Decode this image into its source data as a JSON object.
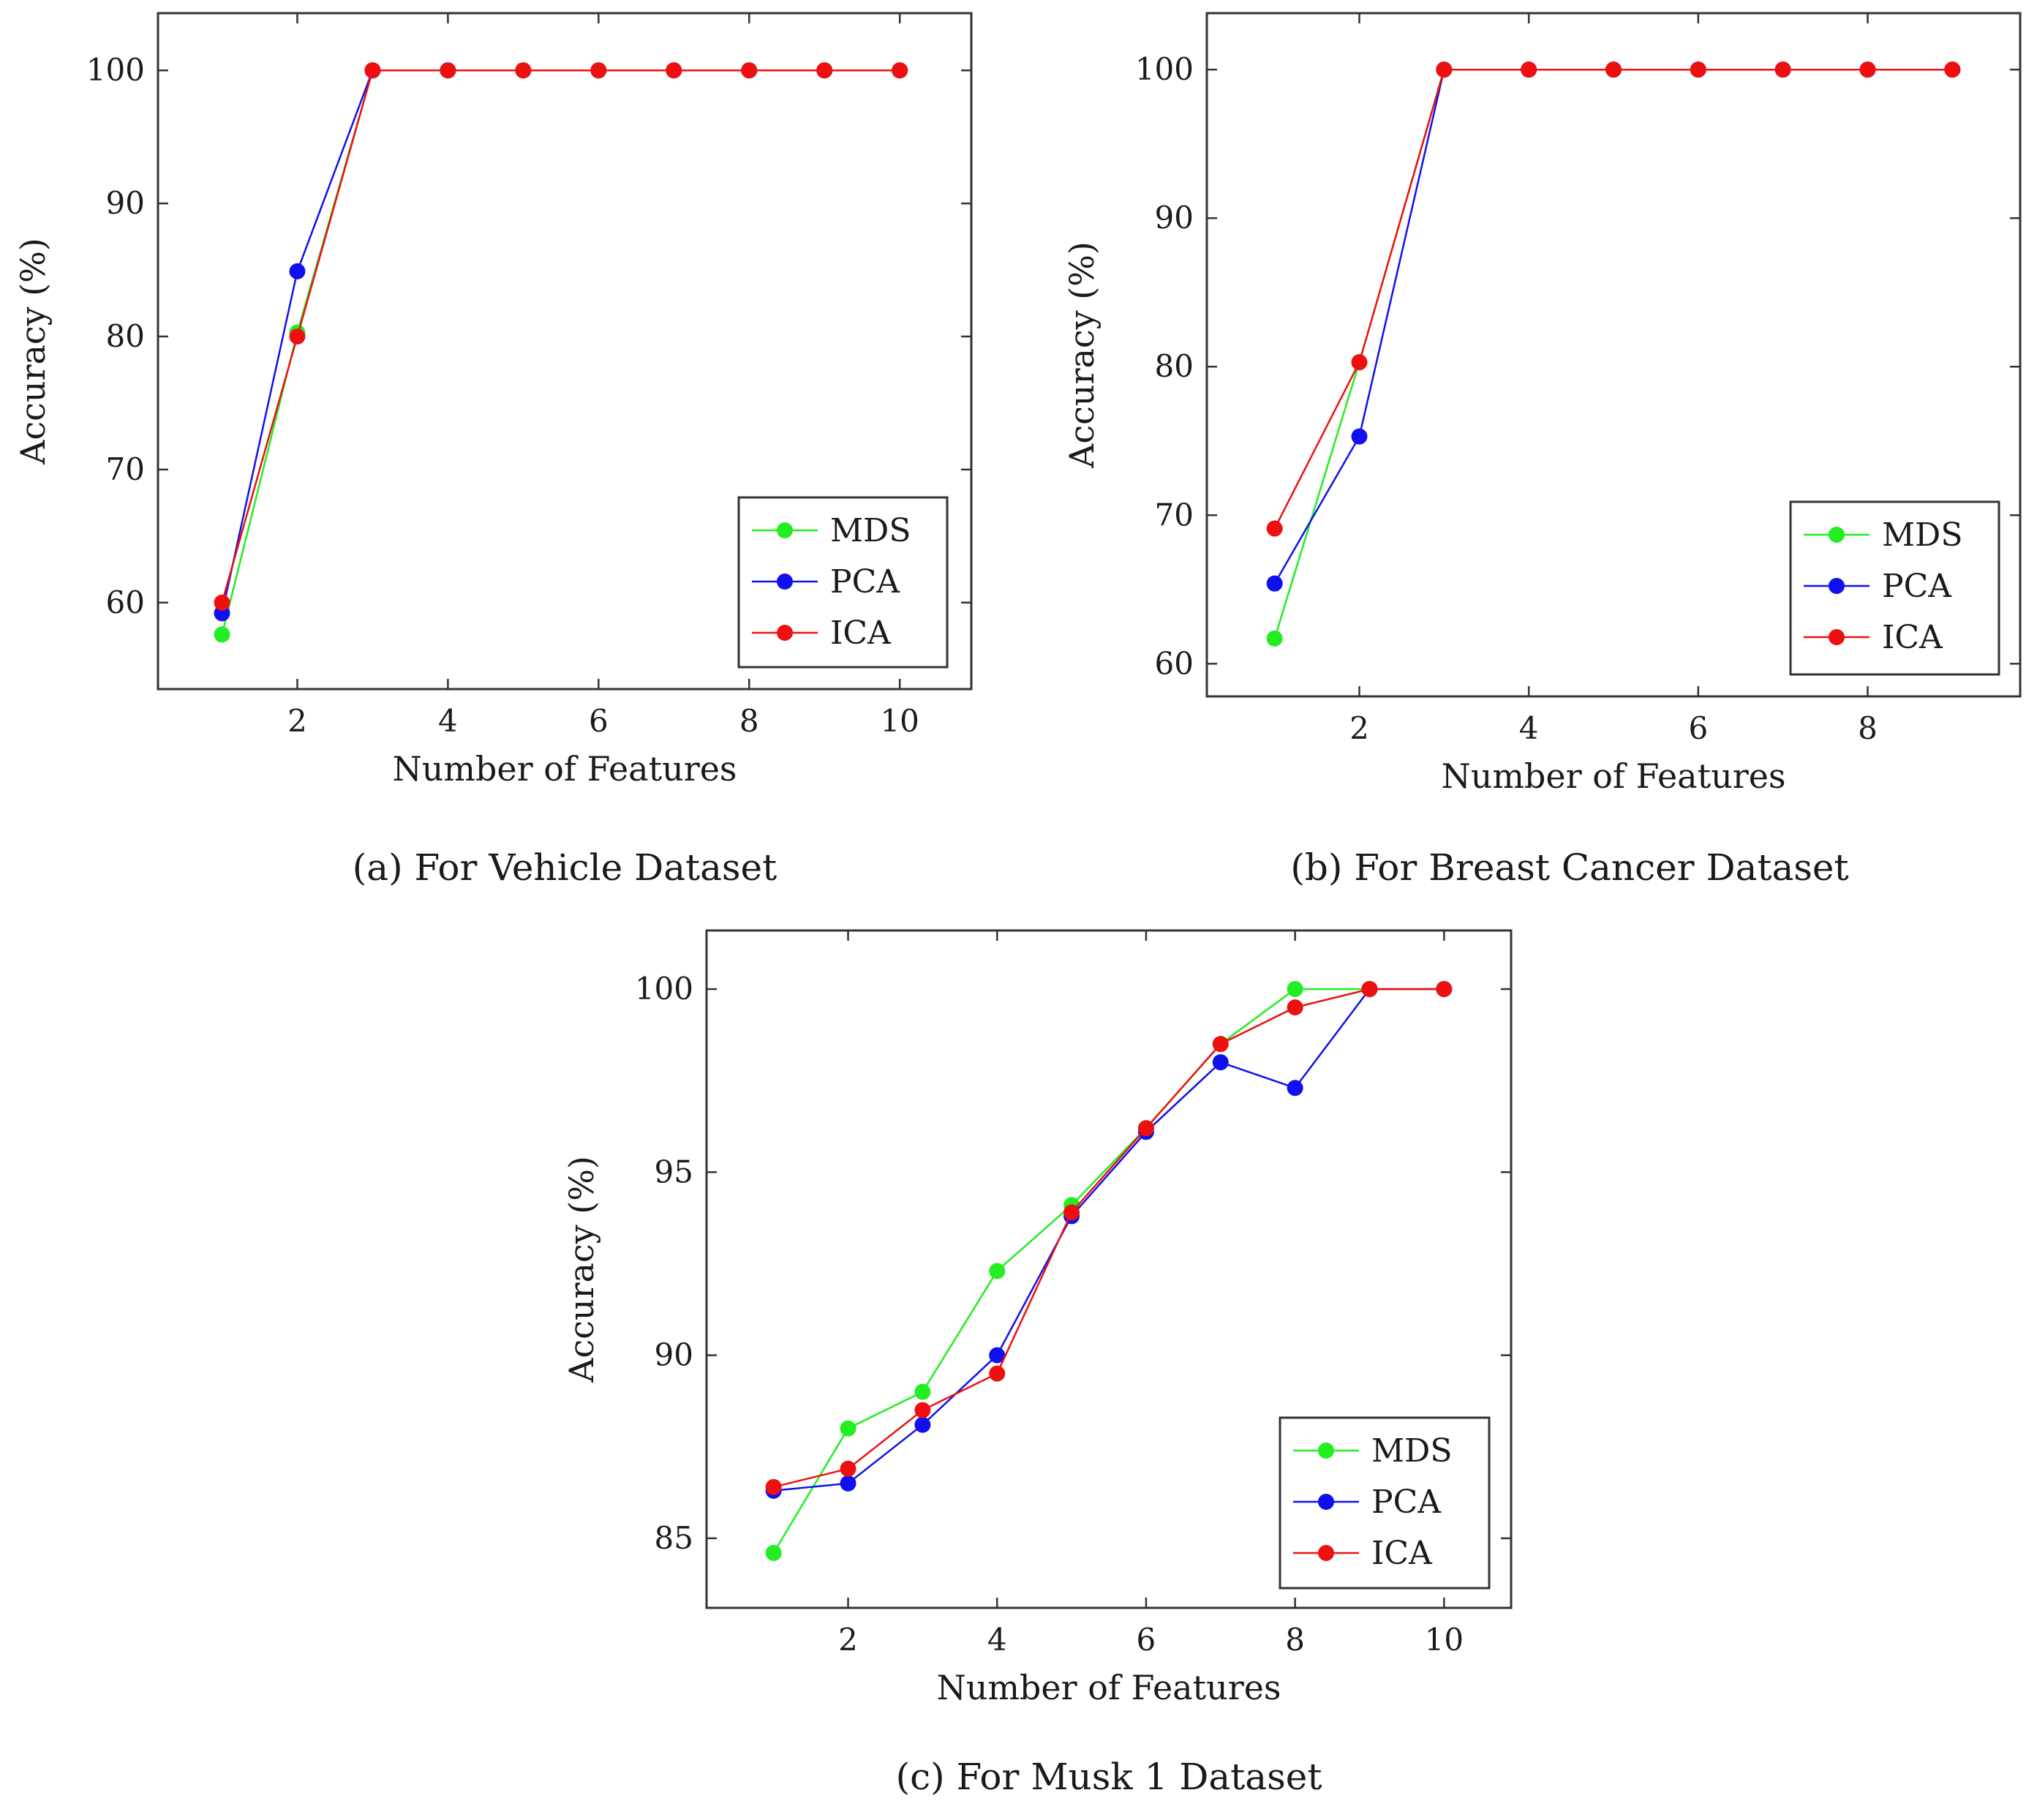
{
  "series_colors": {
    "MDS": "#22ee22",
    "PCA": "#1010ee",
    "ICA": "#ee1010"
  },
  "chart_data": [
    {
      "type": "line",
      "caption": "(a) For Vehicle Dataset",
      "xlabel": "Number of Features",
      "ylabel": "Accuracy (%)",
      "xlim": [
        0.15,
        10.95
      ],
      "ylim": [
        53.5,
        104.3
      ],
      "xticks": [
        2,
        4,
        6,
        8,
        10
      ],
      "yticks": [
        60,
        70,
        80,
        90,
        100
      ],
      "legend_position": "bottom-right",
      "series": [
        {
          "name": "MDS",
          "x": [
            1,
            2,
            3,
            4,
            5,
            6,
            7,
            8,
            9,
            10
          ],
          "values": [
            57.6,
            80.3,
            100,
            100,
            100,
            100,
            100,
            100,
            100,
            100
          ]
        },
        {
          "name": "PCA",
          "x": [
            1,
            2,
            3,
            4,
            5,
            6,
            7,
            8,
            9,
            10
          ],
          "values": [
            59.2,
            84.9,
            100,
            100,
            100,
            100,
            100,
            100,
            100,
            100
          ]
        },
        {
          "name": "ICA",
          "x": [
            1,
            2,
            3,
            4,
            5,
            6,
            7,
            8,
            9,
            10
          ],
          "values": [
            60.0,
            80.0,
            100,
            100,
            100,
            100,
            100,
            100,
            100,
            100
          ]
        }
      ]
    },
    {
      "type": "line",
      "caption": "(b) For Breast Cancer Dataset",
      "xlabel": "Number of Features",
      "ylabel": "Accuracy (%)",
      "xlim": [
        0.2,
        9.8
      ],
      "ylim": [
        57.8,
        103.8
      ],
      "xticks": [
        2,
        4,
        6,
        8
      ],
      "yticks": [
        60,
        70,
        80,
        90,
        100
      ],
      "legend_position": "bottom-right",
      "series": [
        {
          "name": "MDS",
          "x": [
            1,
            2,
            3,
            4,
            5,
            6,
            7,
            8,
            9
          ],
          "values": [
            61.7,
            80.3,
            100,
            100,
            100,
            100,
            100,
            100,
            100
          ]
        },
        {
          "name": "PCA",
          "x": [
            1,
            2,
            3,
            4,
            5,
            6,
            7,
            8,
            9
          ],
          "values": [
            65.4,
            75.3,
            100,
            100,
            100,
            100,
            100,
            100,
            100
          ]
        },
        {
          "name": "ICA",
          "x": [
            1,
            2,
            3,
            4,
            5,
            6,
            7,
            8,
            9
          ],
          "values": [
            69.1,
            80.3,
            100,
            100,
            100,
            100,
            100,
            100,
            100
          ]
        }
      ]
    },
    {
      "type": "line",
      "caption": "(c) For Musk 1 Dataset",
      "xlabel": "Number of Features",
      "ylabel": "Accuracy (%)",
      "xlim": [
        0.1,
        10.9
      ],
      "ylim": [
        83.1,
        101.6
      ],
      "xticks": [
        2,
        4,
        6,
        8,
        10
      ],
      "yticks": [
        85,
        90,
        95,
        100
      ],
      "legend_position": "bottom-right",
      "series": [
        {
          "name": "MDS",
          "x": [
            1,
            2,
            3,
            4,
            5,
            6,
            7,
            8,
            9,
            10
          ],
          "values": [
            84.6,
            88.0,
            89.0,
            92.3,
            94.1,
            96.2,
            98.5,
            100,
            100,
            100
          ]
        },
        {
          "name": "PCA",
          "x": [
            1,
            2,
            3,
            4,
            5,
            6,
            7,
            8,
            9,
            10
          ],
          "values": [
            86.3,
            86.5,
            88.1,
            90.0,
            93.8,
            96.1,
            98.0,
            97.3,
            100,
            100
          ]
        },
        {
          "name": "ICA",
          "x": [
            1,
            2,
            3,
            4,
            5,
            6,
            7,
            8,
            9,
            10
          ],
          "values": [
            86.4,
            86.9,
            88.5,
            89.5,
            93.9,
            96.2,
            98.5,
            99.5,
            100,
            100
          ]
        }
      ]
    }
  ]
}
